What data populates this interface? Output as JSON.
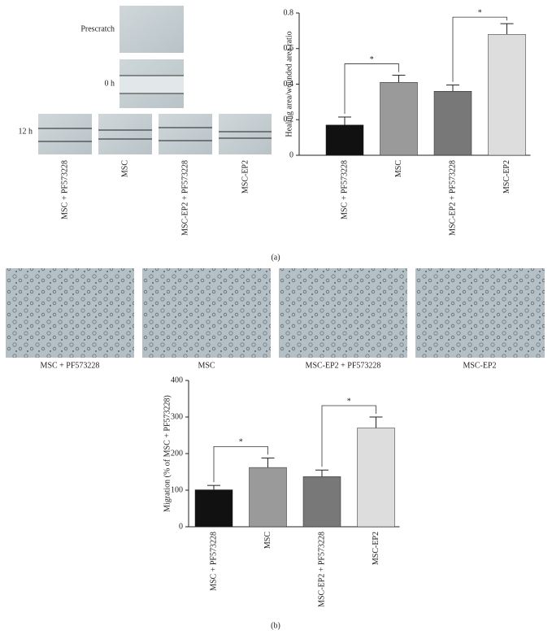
{
  "figure": {
    "scratch_labels": [
      "Prescratch",
      "0 h",
      "12 h"
    ],
    "scratch_groups": [
      "MSC + PF573228",
      "MSC",
      "MSC-EP2 + PF573228",
      "MSC-EP2"
    ],
    "panel_a": "(a)",
    "migration_captions": [
      "MSC + PF573228",
      "MSC",
      "MSC-EP2 + PF573228",
      "MSC-EP2"
    ],
    "panel_b": "(b)"
  },
  "chart_data": [
    {
      "type": "bar",
      "y_label": "Healing area/wounded area ratio",
      "categories": [
        "MSC + PF573228",
        "MSC",
        "MSC-EP2 + PF573228",
        "MSC-EP2"
      ],
      "values": [
        0.17,
        0.41,
        0.36,
        0.68
      ],
      "errors": [
        0.045,
        0.04,
        0.035,
        0.06
      ],
      "colors": [
        "#111111",
        "#9a9a9a",
        "#787878",
        "#dddddd"
      ],
      "ylim": [
        0,
        0.8
      ],
      "yticks": [
        0,
        0.2,
        0.4,
        0.6,
        0.8
      ],
      "annotations": [
        "*",
        "*"
      ]
    },
    {
      "type": "bar",
      "y_label": "Migration (% of MSC + PF573228)",
      "categories": [
        "MSC + PF573228",
        "MSC",
        "MSC-EP2 + PF573228",
        "MSC-EP2"
      ],
      "values": [
        101,
        162,
        137,
        270
      ],
      "errors": [
        12,
        26,
        18,
        30
      ],
      "colors": [
        "#111111",
        "#9a9a9a",
        "#787878",
        "#dddddd"
      ],
      "ylim": [
        0,
        400
      ],
      "yticks": [
        0,
        100,
        200,
        300,
        400
      ],
      "annotations": [
        "*",
        "*"
      ]
    }
  ]
}
